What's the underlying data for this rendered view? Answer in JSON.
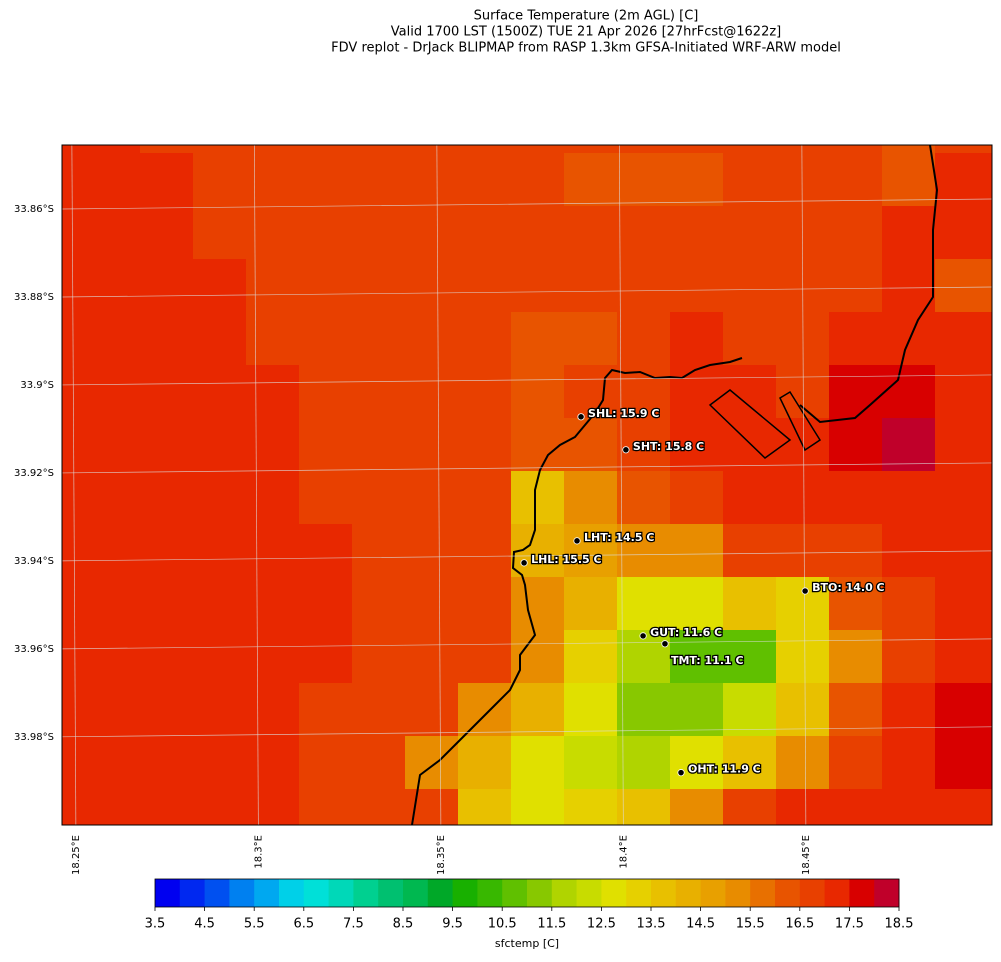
{
  "title_lines": [
    "Surface Temperature (2m AGL) [C]",
    "Valid 1700 LST (1500Z) TUE 21 Apr 2026 [27hrFcst@1622z]",
    "FDV replot - DrJack BLIPMAP from RASP 1.3km GFSA-Initiated WRF-ARW model"
  ],
  "map": {
    "xlim": [
      18.2462,
      18.501
    ],
    "ylim": [
      -34.0005,
      -33.8459
    ],
    "xticks": [
      {
        "value": 18.25,
        "label": "18.25°E"
      },
      {
        "value": 18.3,
        "label": "18.3°E"
      },
      {
        "value": 18.35,
        "label": "18.35°E"
      },
      {
        "value": 18.4,
        "label": "18.4°E"
      },
      {
        "value": 18.45,
        "label": "18.45°E"
      }
    ],
    "yticks": [
      {
        "value": -33.86,
        "label": "33.86°S"
      },
      {
        "value": -33.88,
        "label": "33.88°S"
      },
      {
        "value": -33.9,
        "label": "33.9°S"
      },
      {
        "value": -33.92,
        "label": "33.92°S"
      },
      {
        "value": -33.94,
        "label": "33.94°S"
      },
      {
        "value": -33.96,
        "label": "33.96°S"
      },
      {
        "value": -33.98,
        "label": "33.98°S"
      }
    ],
    "grid_values": [
      [
        17.25,
        17.25,
        16.75,
        16.75,
        16.75,
        16.75,
        16.75,
        16.75,
        16.75,
        16.75,
        16.75,
        16.75,
        16.75,
        16.75,
        16.75,
        16.75,
        16.25,
        16.75,
        16.75
      ],
      [
        17.25,
        17.25,
        17.25,
        16.75,
        16.75,
        16.75,
        16.75,
        16.75,
        16.75,
        16.75,
        16.25,
        16.25,
        16.25,
        16.75,
        16.75,
        16.75,
        16.25,
        17.25,
        17.25
      ],
      [
        17.25,
        17.25,
        17.25,
        16.75,
        16.75,
        16.75,
        16.75,
        16.75,
        16.75,
        16.75,
        16.75,
        16.75,
        16.75,
        16.75,
        16.75,
        16.75,
        17.25,
        17.25,
        17.25
      ],
      [
        17.25,
        17.25,
        17.25,
        17.25,
        16.75,
        16.75,
        16.75,
        16.75,
        16.75,
        16.75,
        16.75,
        16.75,
        16.75,
        16.75,
        16.75,
        16.75,
        17.25,
        16.25,
        16.25
      ],
      [
        17.25,
        17.25,
        17.25,
        17.25,
        16.75,
        16.75,
        16.75,
        16.75,
        16.75,
        16.25,
        16.25,
        16.75,
        17.25,
        16.75,
        16.75,
        17.25,
        17.25,
        17.25,
        17.25
      ],
      [
        17.25,
        17.25,
        17.25,
        17.25,
        17.25,
        16.75,
        16.75,
        16.75,
        16.75,
        16.25,
        16.75,
        16.75,
        17.25,
        17.25,
        16.75,
        17.75,
        17.75,
        17.25,
        17.25
      ],
      [
        17.25,
        17.25,
        17.25,
        17.25,
        17.25,
        16.75,
        16.75,
        16.75,
        16.75,
        16.25,
        16.25,
        16.75,
        17.25,
        17.25,
        17.25,
        17.75,
        18.25,
        17.25,
        17.25
      ],
      [
        17.25,
        17.25,
        17.25,
        17.25,
        17.25,
        16.75,
        16.75,
        16.75,
        16.75,
        13.75,
        15.25,
        16.25,
        16.75,
        17.25,
        17.25,
        17.25,
        17.25,
        17.25,
        17.25
      ],
      [
        17.25,
        17.25,
        17.25,
        17.25,
        17.25,
        17.25,
        16.75,
        16.75,
        16.75,
        14.25,
        14.75,
        15.25,
        15.25,
        16.75,
        16.75,
        16.75,
        17.25,
        17.25,
        17.25
      ],
      [
        17.25,
        17.25,
        17.25,
        17.25,
        17.25,
        17.25,
        16.75,
        16.75,
        16.75,
        15.25,
        14.25,
        12.75,
        12.75,
        13.75,
        13.25,
        16.25,
        16.75,
        17.25,
        17.25
      ],
      [
        17.25,
        17.25,
        17.25,
        17.25,
        17.25,
        17.25,
        16.75,
        16.75,
        16.75,
        15.25,
        13.25,
        11.75,
        10.75,
        10.75,
        13.25,
        15.25,
        16.75,
        17.25,
        17.25
      ],
      [
        17.25,
        17.25,
        17.25,
        17.25,
        17.25,
        16.75,
        16.75,
        16.75,
        15.25,
        14.25,
        12.75,
        11.25,
        11.25,
        12.25,
        13.75,
        16.25,
        17.25,
        17.75,
        17.75
      ],
      [
        17.25,
        17.25,
        17.25,
        17.25,
        17.25,
        16.75,
        16.75,
        15.25,
        14.25,
        12.75,
        12.25,
        11.75,
        12.75,
        13.75,
        15.25,
        16.75,
        17.25,
        17.75,
        17.75
      ],
      [
        17.25,
        17.25,
        17.25,
        17.25,
        17.25,
        16.75,
        16.75,
        16.75,
        13.75,
        12.75,
        13.25,
        13.75,
        15.25,
        16.75,
        17.25,
        17.25,
        17.25,
        17.25,
        17.25
      ]
    ],
    "stations": [
      {
        "label": "SHL: 15.9 C",
        "value": 15.9,
        "lon": 18.3884,
        "lat": -33.9077
      },
      {
        "label": "SHT: 15.8 C",
        "value": 15.8,
        "lon": 18.4007,
        "lat": -33.9152
      },
      {
        "label": "LHT: 14.5 C",
        "value": 14.5,
        "lon": 18.3873,
        "lat": -33.9359
      },
      {
        "label": "LHL: 15.5 C",
        "value": 15.5,
        "lon": 18.3728,
        "lat": -33.9409
      },
      {
        "label": "BTO: 14.0 C",
        "value": 14.0,
        "lon": 18.4498,
        "lat": -33.9473
      },
      {
        "label": "GUT: 11.6 C",
        "value": 11.6,
        "lon": 18.4054,
        "lat": -33.9575
      },
      {
        "label": "TMT: 11.1 C",
        "value": 11.1,
        "lon": 18.4114,
        "lat": -33.9593,
        "label_side": "below"
      },
      {
        "label": "OHT: 11.9 C",
        "value": 11.9,
        "lon": 18.4158,
        "lat": -33.9886
      }
    ]
  },
  "colorbar": {
    "label": "sfctemp [C]",
    "lim": [
      3.5,
      18.5
    ],
    "ticks": [
      3.5,
      4.5,
      5.5,
      6.5,
      7.5,
      8.5,
      9.5,
      10.5,
      11.5,
      12.5,
      13.5,
      14.5,
      15.5,
      16.5,
      17.5,
      18.5
    ],
    "colors": [
      "#0000f0",
      "#0028f0",
      "#0050f0",
      "#0080f0",
      "#00a8f0",
      "#00d0e8",
      "#00e0d8",
      "#00d8b8",
      "#00d090",
      "#00c070",
      "#00b850",
      "#00a828",
      "#18b000",
      "#38b800",
      "#60c000",
      "#88c800",
      "#b0d400",
      "#c8dc00",
      "#e0e000",
      "#e6d000",
      "#e8c000",
      "#e8b000",
      "#e8a000",
      "#e88c00",
      "#e87000",
      "#e85400",
      "#e84000",
      "#e82800",
      "#d80000",
      "#c0002a"
    ]
  }
}
